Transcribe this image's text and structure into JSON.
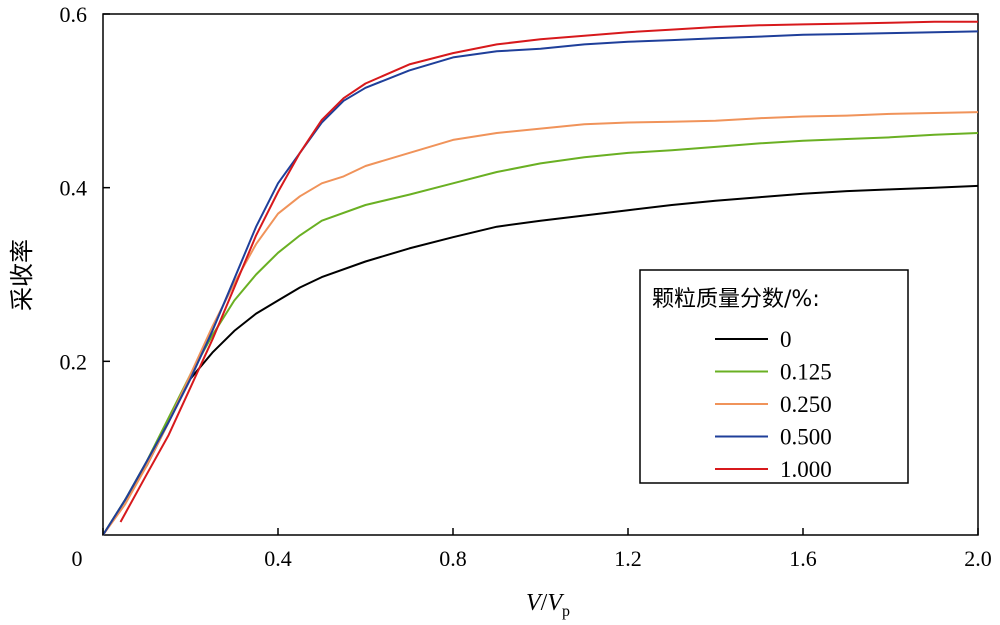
{
  "chart_data": {
    "type": "line",
    "xlabel_main": "V",
    "xlabel_sep": "/",
    "xlabel_var": "V",
    "xlabel_sub": "p",
    "ylabel": "采收率",
    "xlim": [
      0,
      2.0
    ],
    "ylim": [
      0,
      0.6
    ],
    "xticks": [
      "0",
      "0.4",
      "0.8",
      "1.2",
      "1.6",
      "2.0"
    ],
    "yticks": [
      "0.2",
      "0.4",
      "0.6"
    ],
    "legend_title": "颗粒质量分数/%:",
    "legend_position": "center-right",
    "series": [
      {
        "name": "0",
        "color": "#000000",
        "points": [
          [
            0,
            0
          ],
          [
            0.05,
            0.04
          ],
          [
            0.1,
            0.08
          ],
          [
            0.15,
            0.13
          ],
          [
            0.2,
            0.18
          ],
          [
            0.25,
            0.21
          ],
          [
            0.3,
            0.235
          ],
          [
            0.35,
            0.255
          ],
          [
            0.4,
            0.27
          ],
          [
            0.45,
            0.285
          ],
          [
            0.5,
            0.297
          ],
          [
            0.6,
            0.315
          ],
          [
            0.7,
            0.33
          ],
          [
            0.8,
            0.343
          ],
          [
            0.9,
            0.355
          ],
          [
            1.0,
            0.362
          ],
          [
            1.1,
            0.368
          ],
          [
            1.2,
            0.374
          ],
          [
            1.3,
            0.38
          ],
          [
            1.4,
            0.385
          ],
          [
            1.5,
            0.389
          ],
          [
            1.6,
            0.393
          ],
          [
            1.7,
            0.396
          ],
          [
            1.8,
            0.398
          ],
          [
            1.9,
            0.4
          ],
          [
            2.0,
            0.402
          ]
        ]
      },
      {
        "name": "0.125",
        "color": "#6ab023",
        "points": [
          [
            0,
            0
          ],
          [
            0.05,
            0.04
          ],
          [
            0.1,
            0.085
          ],
          [
            0.15,
            0.135
          ],
          [
            0.2,
            0.185
          ],
          [
            0.25,
            0.23
          ],
          [
            0.3,
            0.27
          ],
          [
            0.35,
            0.3
          ],
          [
            0.4,
            0.325
          ],
          [
            0.45,
            0.345
          ],
          [
            0.5,
            0.362
          ],
          [
            0.6,
            0.38
          ],
          [
            0.7,
            0.392
          ],
          [
            0.8,
            0.405
          ],
          [
            0.9,
            0.418
          ],
          [
            1.0,
            0.428
          ],
          [
            1.1,
            0.435
          ],
          [
            1.2,
            0.44
          ],
          [
            1.3,
            0.443
          ],
          [
            1.4,
            0.447
          ],
          [
            1.5,
            0.451
          ],
          [
            1.6,
            0.454
          ],
          [
            1.7,
            0.456
          ],
          [
            1.8,
            0.458
          ],
          [
            1.9,
            0.461
          ],
          [
            2.0,
            0.463
          ]
        ]
      },
      {
        "name": "0.250",
        "color": "#f0935a",
        "points": [
          [
            0,
            0
          ],
          [
            0.05,
            0.035
          ],
          [
            0.1,
            0.08
          ],
          [
            0.15,
            0.13
          ],
          [
            0.2,
            0.185
          ],
          [
            0.25,
            0.24
          ],
          [
            0.3,
            0.29
          ],
          [
            0.35,
            0.335
          ],
          [
            0.4,
            0.37
          ],
          [
            0.45,
            0.39
          ],
          [
            0.5,
            0.405
          ],
          [
            0.55,
            0.413
          ],
          [
            0.6,
            0.425
          ],
          [
            0.7,
            0.44
          ],
          [
            0.8,
            0.455
          ],
          [
            0.9,
            0.463
          ],
          [
            1.0,
            0.468
          ],
          [
            1.1,
            0.473
          ],
          [
            1.2,
            0.475
          ],
          [
            1.3,
            0.476
          ],
          [
            1.4,
            0.477
          ],
          [
            1.5,
            0.48
          ],
          [
            1.6,
            0.482
          ],
          [
            1.7,
            0.483
          ],
          [
            1.8,
            0.485
          ],
          [
            1.9,
            0.486
          ],
          [
            2.0,
            0.487
          ]
        ]
      },
      {
        "name": "0.500",
        "color": "#1f3f9a",
        "points": [
          [
            0,
            0
          ],
          [
            0.05,
            0.04
          ],
          [
            0.1,
            0.085
          ],
          [
            0.15,
            0.13
          ],
          [
            0.2,
            0.18
          ],
          [
            0.25,
            0.235
          ],
          [
            0.3,
            0.295
          ],
          [
            0.35,
            0.355
          ],
          [
            0.4,
            0.405
          ],
          [
            0.45,
            0.44
          ],
          [
            0.5,
            0.475
          ],
          [
            0.55,
            0.5
          ],
          [
            0.6,
            0.515
          ],
          [
            0.7,
            0.535
          ],
          [
            0.8,
            0.55
          ],
          [
            0.9,
            0.557
          ],
          [
            1.0,
            0.56
          ],
          [
            1.1,
            0.565
          ],
          [
            1.2,
            0.568
          ],
          [
            1.3,
            0.57
          ],
          [
            1.4,
            0.572
          ],
          [
            1.5,
            0.574
          ],
          [
            1.6,
            0.576
          ],
          [
            1.7,
            0.577
          ],
          [
            1.8,
            0.578
          ],
          [
            1.9,
            0.579
          ],
          [
            2.0,
            0.58
          ]
        ]
      },
      {
        "name": "1.000",
        "color": "#d7191c",
        "points": [
          [
            0.04,
            0.015
          ],
          [
            0.1,
            0.07
          ],
          [
            0.15,
            0.115
          ],
          [
            0.2,
            0.17
          ],
          [
            0.25,
            0.225
          ],
          [
            0.3,
            0.285
          ],
          [
            0.35,
            0.345
          ],
          [
            0.4,
            0.395
          ],
          [
            0.45,
            0.44
          ],
          [
            0.5,
            0.478
          ],
          [
            0.55,
            0.503
          ],
          [
            0.6,
            0.52
          ],
          [
            0.7,
            0.542
          ],
          [
            0.8,
            0.555
          ],
          [
            0.9,
            0.565
          ],
          [
            1.0,
            0.571
          ],
          [
            1.1,
            0.575
          ],
          [
            1.2,
            0.579
          ],
          [
            1.3,
            0.582
          ],
          [
            1.4,
            0.585
          ],
          [
            1.5,
            0.587
          ],
          [
            1.6,
            0.588
          ],
          [
            1.7,
            0.589
          ],
          [
            1.8,
            0.59
          ],
          [
            1.9,
            0.591
          ],
          [
            2.0,
            0.591
          ]
        ]
      }
    ]
  }
}
